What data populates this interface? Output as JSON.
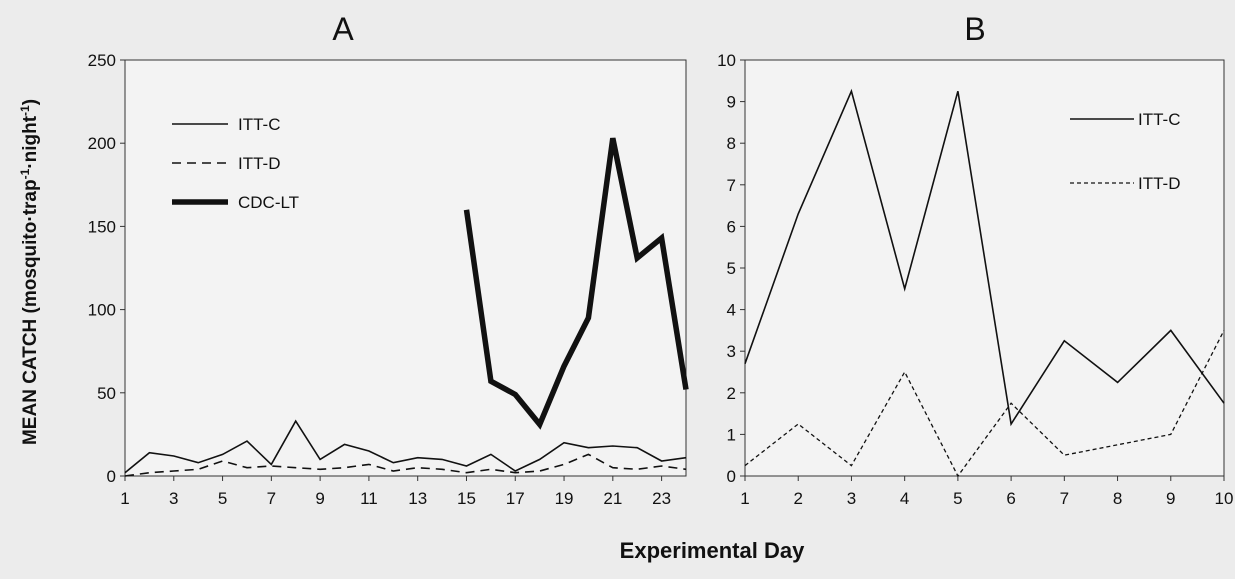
{
  "figure": {
    "ylabel_main": "MEAN CATCH (mosquito·trap",
    "ylabel_sup1": "-1",
    "ylabel_mid": "·night",
    "ylabel_sup2": "-1",
    "ylabel_end": ")",
    "xlabel": "Experimental Day"
  },
  "chart_data": [
    {
      "type": "line",
      "title": "A",
      "xlabel": "Experimental Day",
      "ylabel": "MEAN CATCH (mosquito·trap-1·night-1)",
      "xlim": [
        1,
        24
      ],
      "ylim": [
        0,
        250
      ],
      "yticks": [
        0,
        50,
        100,
        150,
        200,
        250
      ],
      "xticks": [
        1,
        3,
        5,
        7,
        9,
        11,
        13,
        15,
        17,
        19,
        21,
        23
      ],
      "legend_position": "top-left",
      "series": [
        {
          "name": "ITT-C",
          "style": "solid-thin",
          "x": [
            1,
            2,
            3,
            4,
            5,
            6,
            7,
            8,
            9,
            10,
            11,
            12,
            13,
            14,
            15,
            16,
            17,
            18,
            19,
            20,
            21,
            22,
            23,
            24
          ],
          "values": [
            2,
            14,
            12,
            8,
            13,
            21,
            7,
            33,
            10,
            19,
            15,
            8,
            11,
            10,
            6,
            13,
            3,
            10,
            20,
            17,
            18,
            17,
            9,
            11
          ]
        },
        {
          "name": "ITT-D",
          "style": "dashed",
          "x": [
            1,
            2,
            3,
            4,
            5,
            6,
            7,
            8,
            9,
            10,
            11,
            12,
            13,
            14,
            15,
            16,
            17,
            18,
            19,
            20,
            21,
            22,
            23,
            24
          ],
          "values": [
            0,
            2,
            3,
            4,
            9,
            5,
            6,
            5,
            4,
            5,
            7,
            3,
            5,
            4,
            2,
            4,
            2,
            3,
            7,
            13,
            5,
            4,
            6,
            4
          ]
        },
        {
          "name": "CDC-LT",
          "style": "solid-thick",
          "x": [
            15,
            16,
            17,
            18,
            19,
            20,
            21,
            22,
            23,
            24
          ],
          "values": [
            160,
            57,
            49,
            31,
            66,
            95,
            203,
            131,
            143,
            52
          ]
        }
      ]
    },
    {
      "type": "line",
      "title": "B",
      "xlabel": "Experimental Day",
      "ylabel": "",
      "xlim": [
        1,
        10
      ],
      "ylim": [
        0,
        10
      ],
      "yticks": [
        0,
        1,
        2,
        3,
        4,
        5,
        6,
        7,
        8,
        9,
        10
      ],
      "xticks": [
        1,
        2,
        3,
        4,
        5,
        6,
        7,
        8,
        9,
        10
      ],
      "legend_position": "top-right",
      "series": [
        {
          "name": "ITT-C",
          "style": "solid-thin",
          "x": [
            1,
            2,
            3,
            4,
            5,
            6,
            7,
            8,
            9,
            10
          ],
          "values": [
            2.7,
            6.3,
            9.25,
            4.5,
            9.25,
            1.25,
            3.25,
            2.25,
            3.5,
            1.75
          ]
        },
        {
          "name": "ITT-D",
          "style": "dotted",
          "x": [
            1,
            2,
            3,
            4,
            5,
            6,
            7,
            8,
            9,
            10
          ],
          "values": [
            0.25,
            1.25,
            0.25,
            2.5,
            0,
            1.75,
            0.5,
            0.75,
            1.0,
            3.5
          ]
        }
      ]
    }
  ]
}
